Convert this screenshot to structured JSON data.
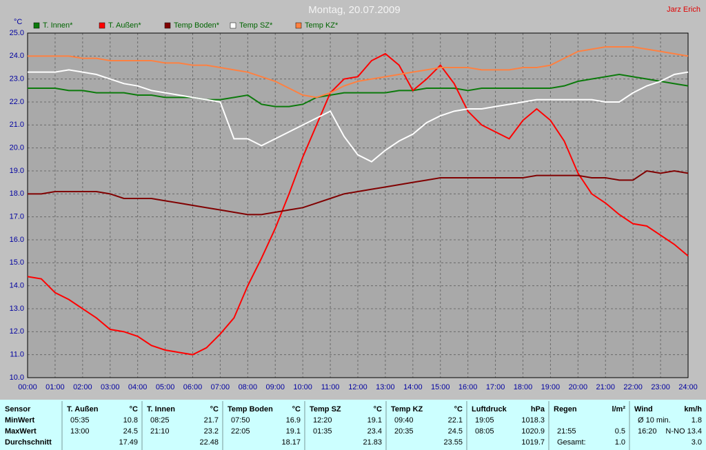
{
  "chart_data": {
    "type": "line",
    "title": "Montag, 20.07.2009",
    "author": "Jarz Erich",
    "y_label": "°C",
    "x": [
      0,
      0.5,
      1,
      1.5,
      2,
      2.5,
      3,
      3.5,
      4,
      4.5,
      5,
      5.5,
      6,
      6.5,
      7,
      7.5,
      8,
      8.5,
      9,
      9.5,
      10,
      10.5,
      11,
      11.5,
      12,
      12.5,
      13,
      13.5,
      14,
      14.5,
      15,
      15.5,
      16,
      16.5,
      17,
      17.5,
      18,
      18.5,
      19,
      19.5,
      20,
      20.5,
      21,
      21.5,
      22,
      22.5,
      23,
      23.5,
      24
    ],
    "series": [
      {
        "name": "T. Innen*",
        "color": "#0b7a0b",
        "values": [
          22.6,
          22.6,
          22.6,
          22.5,
          22.5,
          22.4,
          22.4,
          22.4,
          22.3,
          22.3,
          22.2,
          22.2,
          22.2,
          22.1,
          22.1,
          22.2,
          22.3,
          21.9,
          21.8,
          21.8,
          21.9,
          22.2,
          22.3,
          22.4,
          22.4,
          22.4,
          22.4,
          22.5,
          22.5,
          22.6,
          22.6,
          22.6,
          22.5,
          22.6,
          22.6,
          22.6,
          22.6,
          22.6,
          22.6,
          22.7,
          22.9,
          23.0,
          23.1,
          23.2,
          23.1,
          23.0,
          22.9,
          22.8,
          22.7
        ]
      },
      {
        "name": "T. Außen*",
        "color": "#ff0000",
        "values": [
          14.4,
          14.3,
          13.7,
          13.4,
          13.0,
          12.6,
          12.1,
          12.0,
          11.8,
          11.4,
          11.2,
          11.1,
          11.0,
          11.3,
          11.9,
          12.6,
          14.0,
          15.2,
          16.5,
          18.0,
          19.6,
          21.0,
          22.4,
          23.0,
          23.1,
          23.8,
          24.1,
          23.6,
          22.5,
          23.0,
          23.6,
          22.8,
          21.6,
          21.0,
          20.7,
          20.4,
          21.2,
          21.7,
          21.2,
          20.3,
          18.9,
          18.0,
          17.6,
          17.1,
          16.7,
          16.6,
          16.2,
          15.8,
          15.3
        ]
      },
      {
        "name": "Temp Boden*",
        "color": "#800000",
        "values": [
          18.0,
          18.0,
          18.1,
          18.1,
          18.1,
          18.1,
          18.0,
          17.8,
          17.8,
          17.8,
          17.7,
          17.6,
          17.5,
          17.4,
          17.3,
          17.2,
          17.1,
          17.1,
          17.2,
          17.3,
          17.4,
          17.6,
          17.8,
          18.0,
          18.1,
          18.2,
          18.3,
          18.4,
          18.5,
          18.6,
          18.7,
          18.7,
          18.7,
          18.7,
          18.7,
          18.7,
          18.7,
          18.8,
          18.8,
          18.8,
          18.8,
          18.7,
          18.7,
          18.6,
          18.6,
          19.0,
          18.9,
          19.0,
          18.9
        ]
      },
      {
        "name": "Temp SZ*",
        "color": "#ffffff",
        "values": [
          23.3,
          23.3,
          23.3,
          23.4,
          23.3,
          23.2,
          23.0,
          22.8,
          22.7,
          22.5,
          22.4,
          22.3,
          22.2,
          22.1,
          22.0,
          20.4,
          20.4,
          20.1,
          20.4,
          20.7,
          21.0,
          21.3,
          21.6,
          20.5,
          19.7,
          19.4,
          19.9,
          20.3,
          20.6,
          21.1,
          21.4,
          21.6,
          21.7,
          21.7,
          21.8,
          21.9,
          22.0,
          22.1,
          22.1,
          22.1,
          22.1,
          22.1,
          22.0,
          22.0,
          22.4,
          22.7,
          22.9,
          23.2,
          23.3
        ]
      },
      {
        "name": "Temp KZ*",
        "color": "#ff8040",
        "values": [
          24.0,
          24.0,
          24.0,
          24.0,
          23.9,
          23.9,
          23.8,
          23.8,
          23.8,
          23.8,
          23.7,
          23.7,
          23.6,
          23.6,
          23.5,
          23.4,
          23.3,
          23.1,
          22.9,
          22.6,
          22.3,
          22.2,
          22.4,
          22.7,
          22.9,
          23.0,
          23.1,
          23.2,
          23.3,
          23.4,
          23.5,
          23.5,
          23.5,
          23.4,
          23.4,
          23.4,
          23.5,
          23.5,
          23.6,
          23.9,
          24.2,
          24.3,
          24.4,
          24.4,
          24.4,
          24.3,
          24.2,
          24.1,
          24.0
        ]
      }
    ],
    "xlim": [
      0,
      24
    ],
    "xticks": [
      {
        "value": 0,
        "label": "00:00"
      },
      {
        "value": 1,
        "label": "01:00"
      },
      {
        "value": 2,
        "label": "02:00"
      },
      {
        "value": 3,
        "label": "03:00"
      },
      {
        "value": 4,
        "label": "04:00"
      },
      {
        "value": 5,
        "label": "05:00"
      },
      {
        "value": 6,
        "label": "06:00"
      },
      {
        "value": 7,
        "label": "07:00"
      },
      {
        "value": 8,
        "label": "08:00"
      },
      {
        "value": 9,
        "label": "09:00"
      },
      {
        "value": 10,
        "label": "10:00"
      },
      {
        "value": 11,
        "label": "11:00"
      },
      {
        "value": 12,
        "label": "12:00"
      },
      {
        "value": 13,
        "label": "13:00"
      },
      {
        "value": 14,
        "label": "14:00"
      },
      {
        "value": 15,
        "label": "15:00"
      },
      {
        "value": 16,
        "label": "16:00"
      },
      {
        "value": 17,
        "label": "17:00"
      },
      {
        "value": 18,
        "label": "18:00"
      },
      {
        "value": 19,
        "label": "19:00"
      },
      {
        "value": 20,
        "label": "20:00"
      },
      {
        "value": 21,
        "label": "21:00"
      },
      {
        "value": 22,
        "label": "22:00"
      },
      {
        "value": 23,
        "label": "23:00"
      },
      {
        "value": 24,
        "label": "24:00"
      }
    ],
    "ylim": [
      10,
      25
    ],
    "yticks": [
      {
        "value": 10,
        "label": "10.0"
      },
      {
        "value": 11,
        "label": "11.0"
      },
      {
        "value": 12,
        "label": "12.0"
      },
      {
        "value": 13,
        "label": "13.0"
      },
      {
        "value": 14,
        "label": "14.0"
      },
      {
        "value": 15,
        "label": "15.0"
      },
      {
        "value": 16,
        "label": "16.0"
      },
      {
        "value": 17,
        "label": "17.0"
      },
      {
        "value": 18,
        "label": "18.0"
      },
      {
        "value": 19,
        "label": "19.0"
      },
      {
        "value": 20,
        "label": "20.0"
      },
      {
        "value": 21,
        "label": "21.0"
      },
      {
        "value": 22,
        "label": "22.0"
      },
      {
        "value": 23,
        "label": "23.0"
      },
      {
        "value": 24,
        "label": "24.0"
      },
      {
        "value": 25,
        "label": "25.0"
      }
    ],
    "grid": true
  },
  "table": {
    "groups": [
      {
        "name": "Sensor",
        "rows": [
          "MinWert",
          "MaxWert",
          "Durchschnitt"
        ]
      },
      {
        "name": "T. Außen",
        "unit": "°C",
        "rows": [
          [
            "05:35",
            "10.8"
          ],
          [
            "13:00",
            "24.5"
          ],
          [
            "17.49"
          ]
        ]
      },
      {
        "name": "T. Innen",
        "unit": "°C",
        "rows": [
          [
            "08:25",
            "21.7"
          ],
          [
            "21:10",
            "23.2"
          ],
          [
            "22.48"
          ]
        ]
      },
      {
        "name": "Temp Boden",
        "unit": "°C",
        "rows": [
          [
            "07:50",
            "16.9"
          ],
          [
            "22:05",
            "19.1"
          ],
          [
            "18.17"
          ]
        ]
      },
      {
        "name": "Temp SZ",
        "unit": "°C",
        "rows": [
          [
            "12:20",
            "19.1"
          ],
          [
            "01:35",
            "23.4"
          ],
          [
            "21.83"
          ]
        ]
      },
      {
        "name": "Temp KZ",
        "unit": "°C",
        "rows": [
          [
            "09:40",
            "22.1"
          ],
          [
            "20:35",
            "24.5"
          ],
          [
            "23.55"
          ]
        ]
      },
      {
        "name": "Luftdruck",
        "unit": "hPa",
        "rows": [
          [
            "19:05",
            "1018.3"
          ],
          [
            "08:05",
            "1020.9"
          ],
          [
            "1019.7"
          ]
        ]
      },
      {
        "name": "Regen",
        "unit": "l/m²",
        "rows": [
          null,
          [
            "21:55",
            "0.5"
          ],
          [
            "Gesamt:",
            "1.0"
          ]
        ]
      },
      {
        "name": "Wind",
        "unit": "km/h",
        "rows": [
          [
            "Ø 10 min.",
            "1.8"
          ],
          [
            "16:20",
            "N-NO 13.4"
          ],
          [
            "3.0"
          ]
        ]
      }
    ]
  }
}
